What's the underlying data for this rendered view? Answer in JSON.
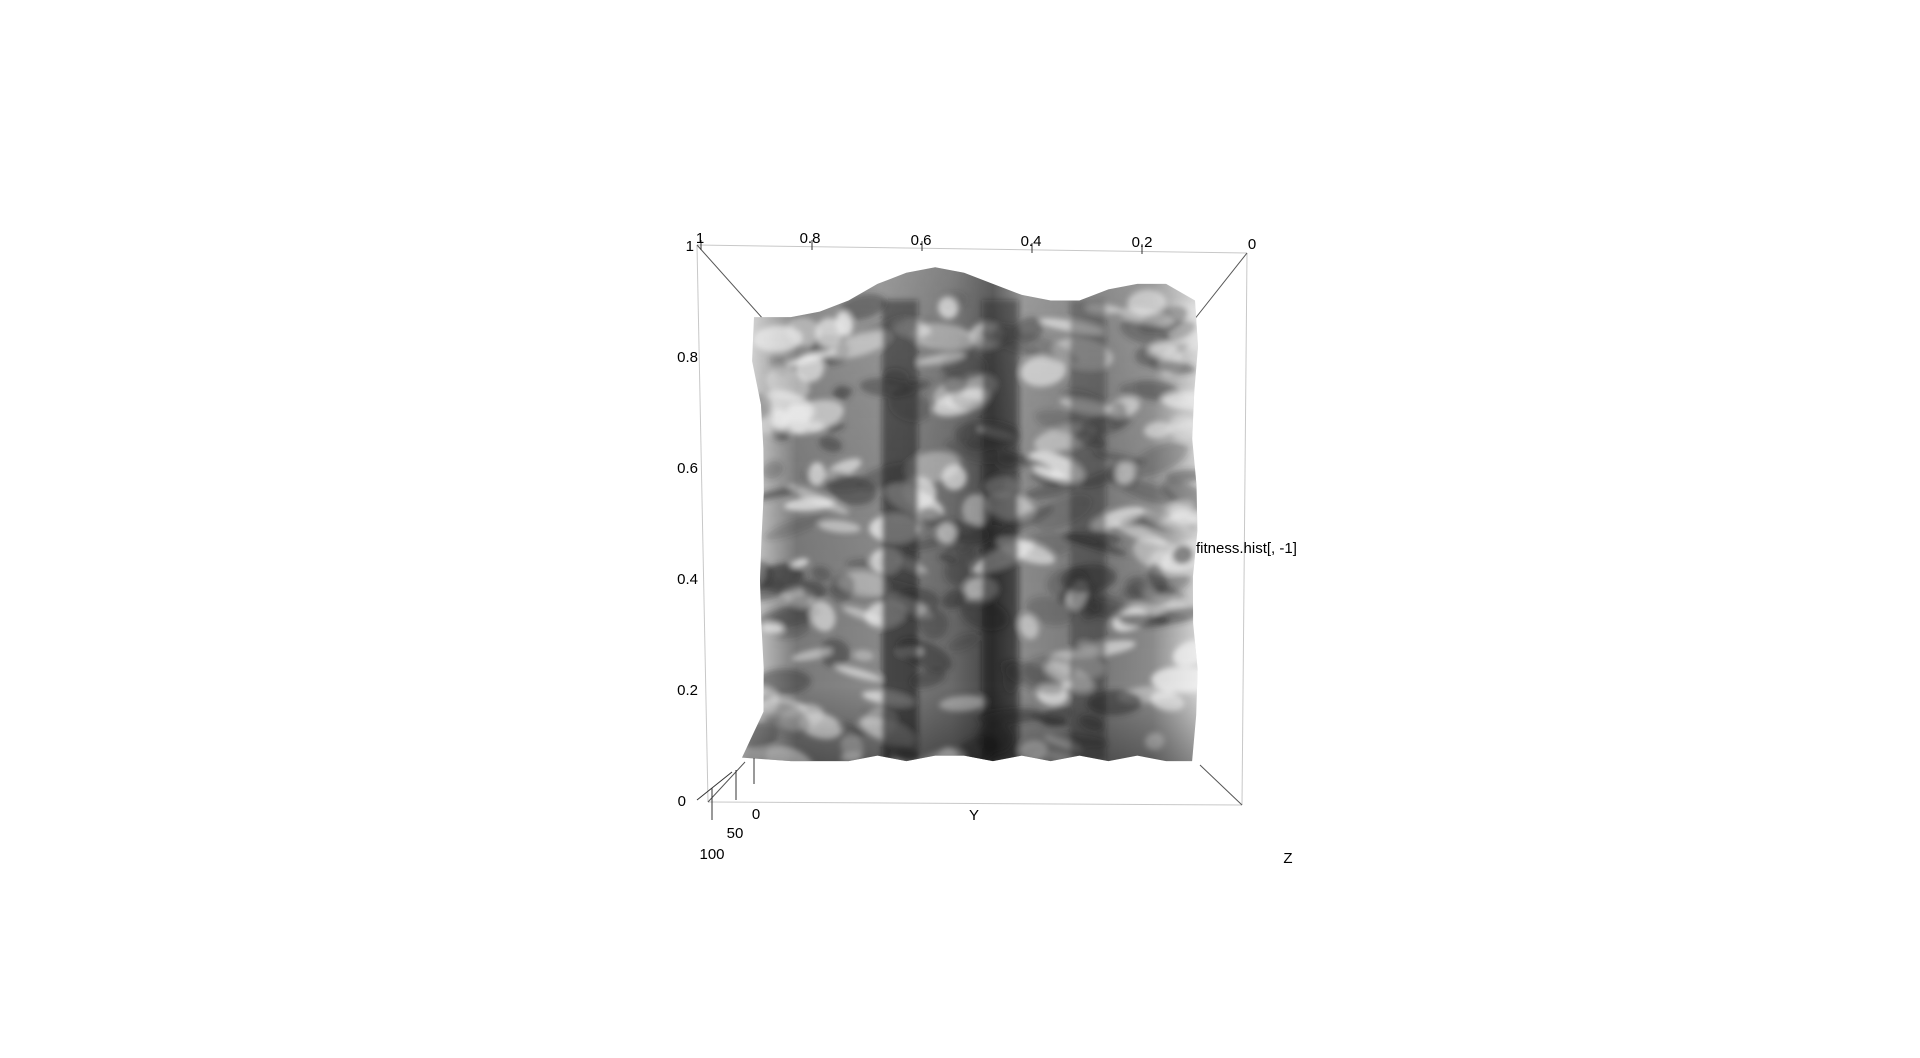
{
  "chart_data": {
    "type": "surface3d",
    "xlabel": "Y",
    "ylabel": "fitness.hist[, -1]",
    "zlabel": "Z",
    "top_ticks": [
      "1",
      "0.8",
      "0.6",
      "0.4",
      "0.2",
      "0"
    ],
    "left_ticks": [
      "1",
      "0.8",
      "0.6",
      "0.4",
      "0.2",
      "0"
    ],
    "depth_ticks": [
      "0",
      "50",
      "100"
    ],
    "xlim": [
      0,
      1
    ],
    "ylim": [
      0,
      1
    ],
    "depth_lim": [
      0,
      100
    ],
    "surface": {
      "shading": "grayscale",
      "height_profile_top": [
        0.87,
        0.87,
        0.88,
        0.9,
        0.93,
        0.95,
        0.96,
        0.95,
        0.93,
        0.91,
        0.9,
        0.9,
        0.92,
        0.93,
        0.93,
        0.9
      ],
      "height_profile_bottom": [
        0.08,
        0.07,
        0.07,
        0.07,
        0.08,
        0.07,
        0.08,
        0.08,
        0.07,
        0.08,
        0.07,
        0.08,
        0.07,
        0.08,
        0.07,
        0.07
      ]
    }
  }
}
